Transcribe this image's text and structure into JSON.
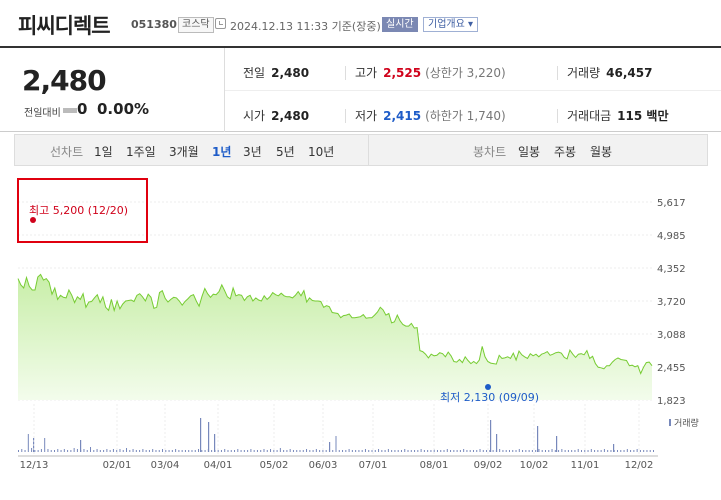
{
  "header": {
    "name": "피씨디렉트",
    "code": "051380",
    "market": "코스닥",
    "time": "2024.12.13 11:33 기준(장중)",
    "realtime": "실시간",
    "corp_info": "기업개요 ▾"
  },
  "summary": {
    "price": "2,480",
    "change_label": "전일대비",
    "change_value": "0",
    "change_rate": "0.00%",
    "prev_close_label": "전일",
    "prev_close": "2,480",
    "high_label": "고가",
    "high": "2,525",
    "upper_limit": "(상한가 3,220)",
    "volume_label": "거래량",
    "volume": "46,457",
    "open_label": "시가",
    "open": "2,480",
    "low_label": "저가",
    "low": "2,415",
    "lower_limit": "(하한가 1,740)",
    "amount_label": "거래대금",
    "amount": "115 백만"
  },
  "period_bar": {
    "line_chart_label": "선차트",
    "line_periods": [
      "1일",
      "1주일",
      "3개월",
      "1년",
      "3년",
      "5년",
      "10년"
    ],
    "active_period": "1년",
    "candle_chart_label": "봉차트",
    "candle_periods": [
      "일봉",
      "주봉",
      "월봉"
    ]
  },
  "chart_data": {
    "type": "area",
    "x_ticks": [
      "12/13",
      "02/01",
      "03/04",
      "04/01",
      "05/02",
      "06/03",
      "07/01",
      "08/01",
      "09/02",
      "10/02",
      "11/01",
      "12/02"
    ],
    "y_ticks": [
      5617,
      4985,
      4352,
      3720,
      3088,
      2455,
      1823
    ],
    "ylim": [
      1823,
      5617
    ],
    "series": [
      {
        "values": [
          4150,
          4030,
          3970,
          4170,
          4000,
          3930,
          3930,
          4180,
          4230,
          4120,
          4150,
          4080,
          3850,
          3970,
          3750,
          3830,
          3790,
          3780,
          3930,
          3830,
          3690,
          3800,
          3750,
          3860,
          3600,
          3700,
          3710,
          3780,
          3840,
          3690,
          3800,
          3600,
          3540,
          3750,
          3540,
          3720,
          3570,
          3660,
          3720,
          3730,
          3740,
          3710,
          3830,
          3860,
          3800,
          3720,
          3850,
          3790,
          3580,
          3600,
          3880,
          3920,
          3770,
          3700,
          3750,
          3790,
          3780,
          3720,
          3640,
          3710,
          3760,
          3820,
          3840,
          3720,
          3620,
          3810,
          3960,
          3860,
          3790,
          3850,
          3840,
          3900,
          4030,
          3920,
          3800,
          3760,
          3970,
          3820,
          3840,
          3830,
          3730,
          3800,
          3830,
          3720,
          3780,
          3740,
          3720,
          3820,
          3750,
          3800,
          3880,
          3840,
          3820,
          3870,
          3820,
          3800,
          3800,
          3780,
          3830,
          3900,
          3820,
          3920,
          3700,
          3780,
          3730,
          3720,
          3720,
          3710,
          3600,
          3630,
          3610,
          3500,
          3490,
          3480,
          3400,
          3440,
          3450,
          3470,
          3400,
          3400,
          3410,
          3420,
          3460,
          3390,
          3400,
          3400,
          3450,
          3510,
          3600,
          3550,
          3450,
          3480,
          3300,
          3320,
          3450,
          3340,
          3270,
          3240,
          3240,
          3290,
          3200,
          3210,
          2770,
          2750,
          2700,
          2630,
          2700,
          2670,
          2680,
          2730,
          2710,
          2650,
          2740,
          2670,
          2560,
          2550,
          2600,
          2540,
          2650,
          2580,
          2520,
          2560,
          2520,
          2590,
          2850,
          2650,
          2560,
          2530,
          2520,
          2510,
          2680,
          2620,
          2630,
          2650,
          2620,
          2720,
          2590,
          2760,
          2690,
          2650,
          2620,
          2710,
          2670,
          2700,
          2650,
          2700,
          2720,
          2750,
          2680,
          2700,
          2730,
          2740,
          2720,
          2640,
          2610,
          2780,
          2700,
          2640,
          2700,
          2710,
          2690,
          2770,
          2620,
          2660,
          2520,
          2450,
          2440,
          2420,
          2480,
          2480,
          2550,
          2600,
          2630,
          2600,
          2590,
          2580,
          2480,
          2490,
          2460,
          2480,
          2330,
          2450,
          2540,
          2550,
          2480
        ]
      }
    ],
    "annotations": {
      "high": {
        "label": "최고 5,200 (12/20)",
        "value": 5200
      },
      "low": {
        "label": "최저 2,130 (09/09)",
        "value": 2130
      }
    },
    "volume_label": "거래량",
    "colors": {
      "line": "#77cc33",
      "fill_top": "#c8eea8",
      "fill_bottom": "#f3fcec",
      "volume": "#7788bb",
      "high": "#d0021b",
      "low": "#1e5cc8"
    }
  }
}
